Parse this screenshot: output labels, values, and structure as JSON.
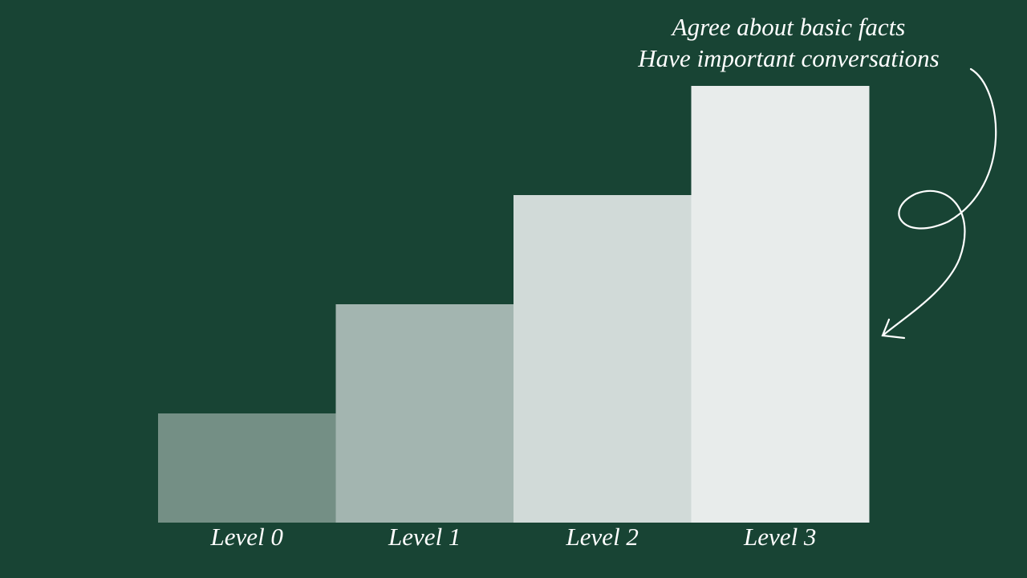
{
  "chart_data": {
    "type": "bar",
    "annotations": [
      "Agree about basic facts",
      "Have important conversations"
    ],
    "categories": [
      "Level 0",
      "Level 1",
      "Level 2",
      "Level 3"
    ],
    "values": [
      1,
      2,
      3,
      4
    ],
    "colors": [
      "#748f85",
      "#a3b5b0",
      "#d1dad8",
      "#e8eceb"
    ]
  }
}
